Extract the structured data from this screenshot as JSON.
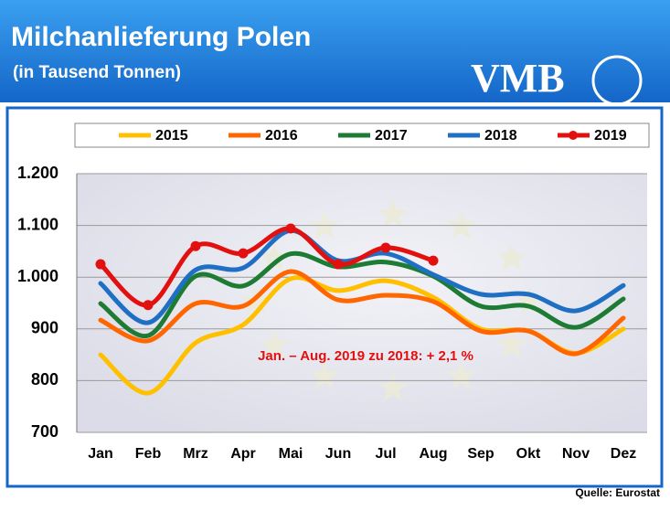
{
  "title": "Milchanlieferung Polen",
  "subtitle": "(in Tausend Tonnen)",
  "logo": "VMB",
  "source": "Quelle: Eurostat",
  "chart_data": {
    "type": "line",
    "categories": [
      "Jan",
      "Feb",
      "Mrz",
      "Apr",
      "Mai",
      "Jun",
      "Jul",
      "Aug",
      "Sep",
      "Okt",
      "Nov",
      "Dez"
    ],
    "series": [
      {
        "name": "2015",
        "color": "#ffc000",
        "values": [
          850,
          776,
          873,
          908,
          997,
          974,
          993,
          961,
          900,
          896,
          853,
          900
        ]
      },
      {
        "name": "2016",
        "color": "#ff6600",
        "values": [
          917,
          877,
          949,
          944,
          1011,
          956,
          965,
          953,
          896,
          896,
          852,
          921
        ]
      },
      {
        "name": "2017",
        "color": "#1e7b34",
        "values": [
          949,
          887,
          1002,
          983,
          1045,
          1020,
          1029,
          1002,
          944,
          944,
          903,
          958
        ]
      },
      {
        "name": "2018",
        "color": "#1f6fc5",
        "values": [
          988,
          912,
          1014,
          1018,
          1090,
          1032,
          1046,
          1005,
          967,
          967,
          935,
          984
        ]
      },
      {
        "name": "2019",
        "color": "#e31010",
        "values": [
          1025,
          946,
          1060,
          1046,
          1094,
          1025,
          1057,
          1032,
          null,
          null,
          null,
          null
        ]
      }
    ],
    "ylim": [
      700,
      1200
    ],
    "yticks": [
      700,
      800,
      900,
      {
        "value": 1000,
        "label": "1.000"
      },
      {
        "value": 1100,
        "label": "1.100"
      },
      {
        "value": 1200,
        "label": "1.200"
      }
    ],
    "grid": true,
    "legend": "top",
    "annotation": "Jan. – Aug. 2019 zu 2018: + 2,1 %"
  }
}
